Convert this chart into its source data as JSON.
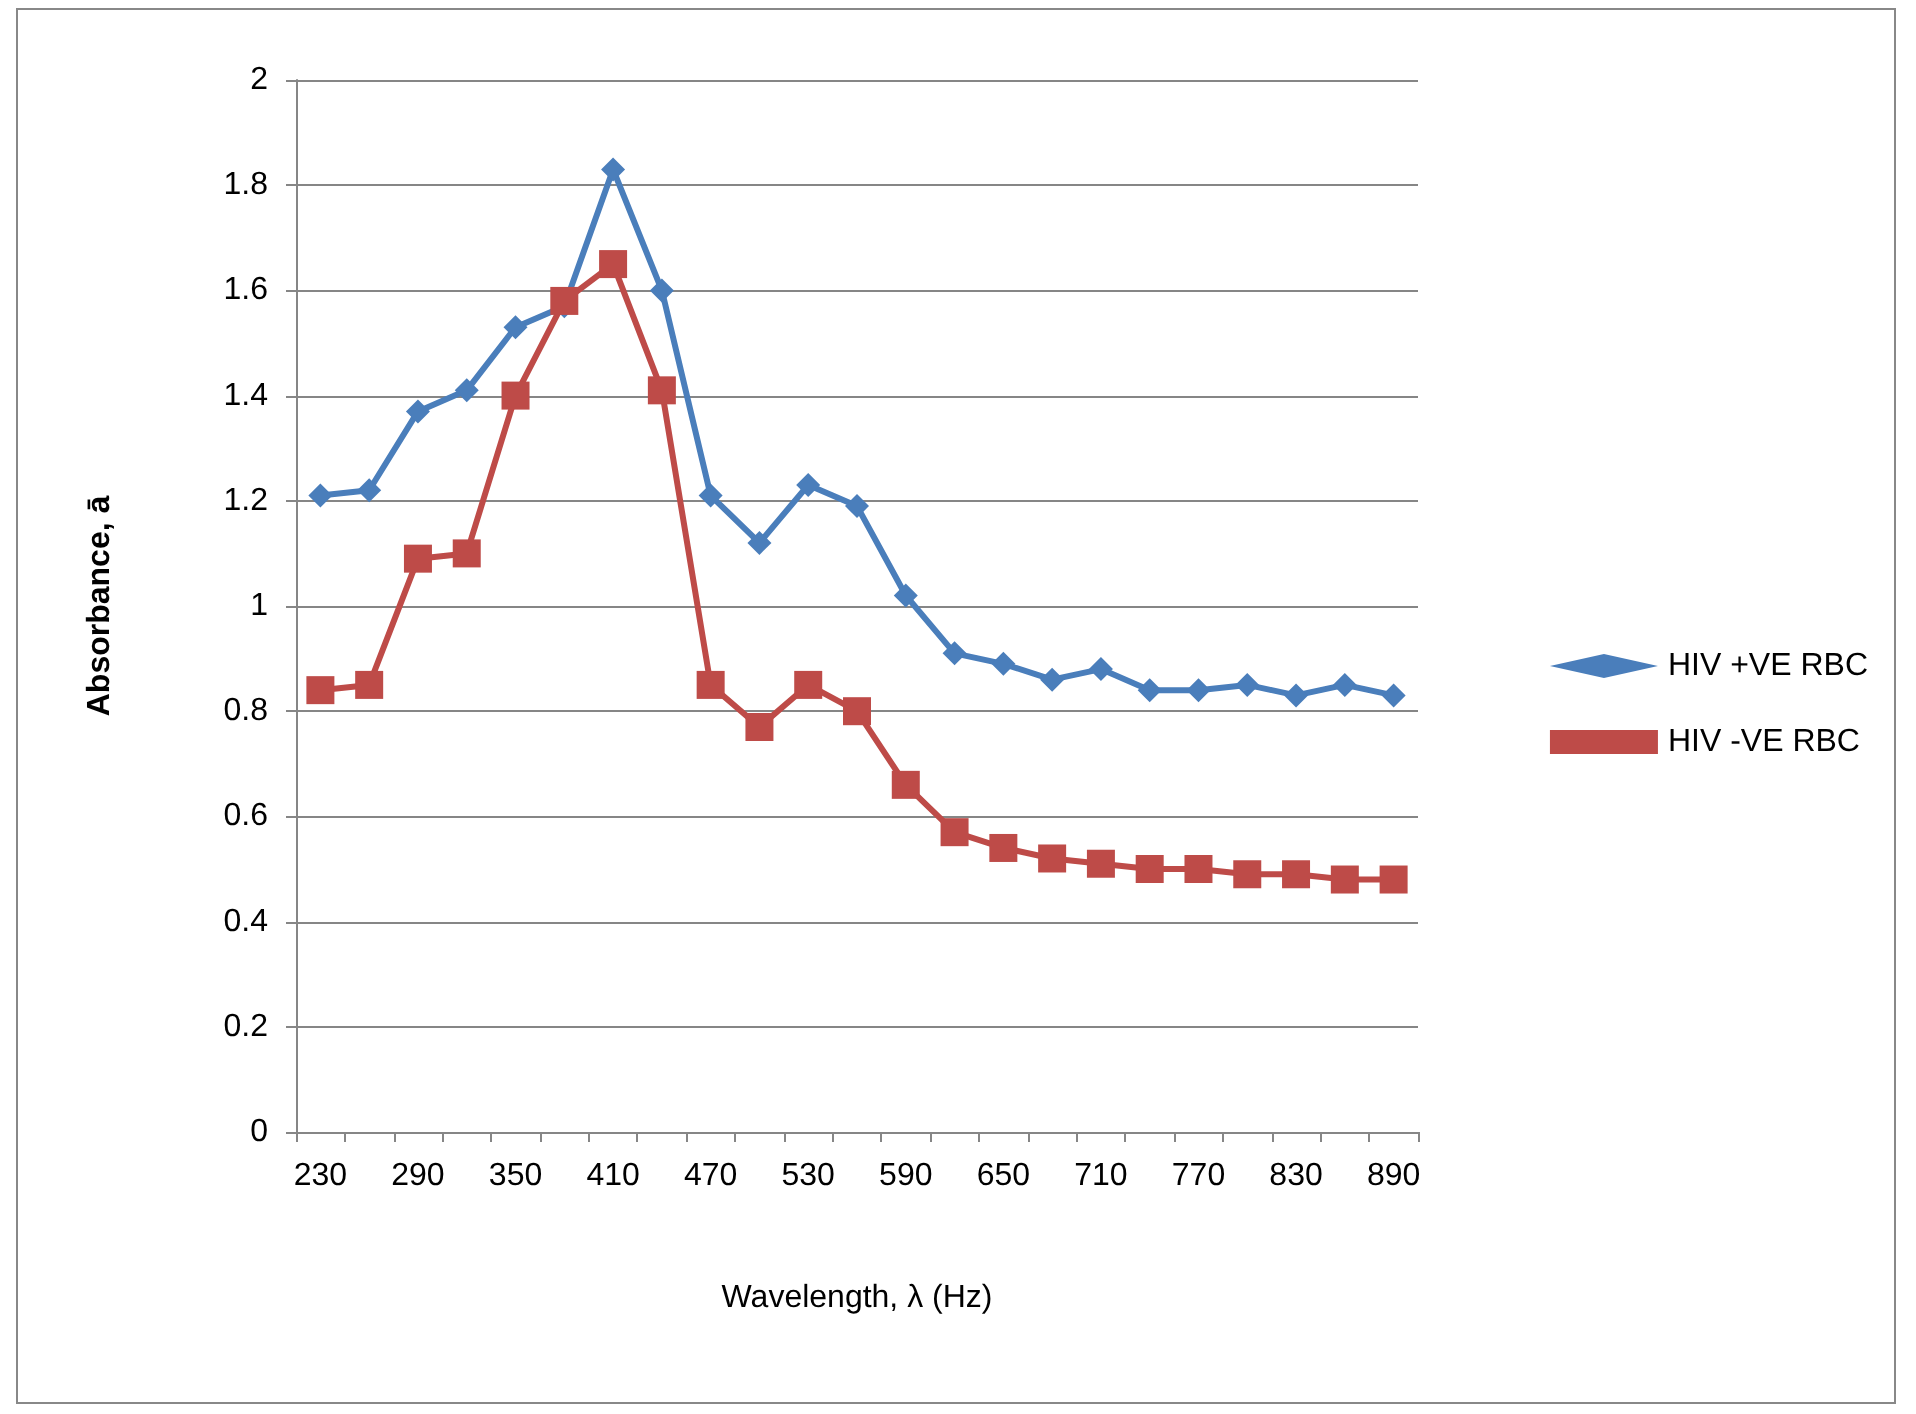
{
  "chart_data": {
    "type": "line",
    "xlabel": "Wavelength, λ (Hz)",
    "ylabel": "Absorbance, ā",
    "categories": [
      "230",
      null,
      "290",
      null,
      "350",
      null,
      "410",
      null,
      "470",
      null,
      "530",
      null,
      "590",
      null,
      "650",
      null,
      "710",
      null,
      "770",
      null,
      "830",
      null,
      "890"
    ],
    "series": [
      {
        "name": "HIV +VE RBC",
        "color": "#4a7ebb",
        "marker": "diamond",
        "values": [
          1.21,
          1.22,
          1.37,
          1.41,
          1.53,
          1.57,
          1.83,
          1.6,
          1.21,
          1.12,
          1.23,
          1.19,
          1.02,
          0.91,
          0.89,
          0.86,
          0.88,
          0.84,
          0.84,
          0.85,
          0.83,
          0.85,
          0.83
        ]
      },
      {
        "name": "HIV -VE RBC",
        "color": "#be4b48",
        "marker": "square",
        "values": [
          0.84,
          0.85,
          1.09,
          1.1,
          1.4,
          1.58,
          1.65,
          1.41,
          0.85,
          0.77,
          0.85,
          0.8,
          0.66,
          0.57,
          0.54,
          0.52,
          0.51,
          0.5,
          0.5,
          0.49,
          0.49,
          0.48,
          0.48
        ]
      }
    ],
    "ylim": [
      0,
      2
    ],
    "yticks": [
      0,
      0.2,
      0.4,
      0.6,
      0.8,
      1,
      1.2,
      1.4,
      1.6,
      1.8,
      2
    ],
    "grid": "y",
    "legend": "right",
    "line_style": "solid"
  }
}
